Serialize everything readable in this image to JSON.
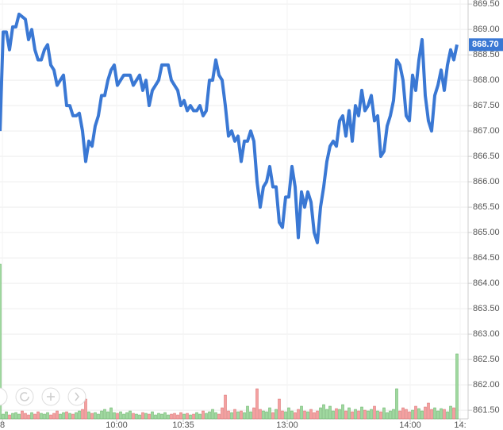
{
  "chart_data": {
    "type": "line",
    "x": [
      0,
      1,
      2,
      3,
      4,
      5,
      6,
      7,
      8,
      9,
      10,
      11,
      12,
      13,
      14,
      15,
      16,
      17,
      18,
      19,
      20,
      21,
      22,
      23,
      24,
      25,
      26,
      27,
      28,
      29,
      30,
      31,
      32,
      33,
      34,
      35,
      36,
      37,
      38,
      39,
      40,
      41,
      42,
      43,
      44,
      45,
      46,
      47,
      48,
      49,
      50,
      51,
      52,
      53,
      54,
      55,
      56,
      57,
      58,
      59,
      60,
      61,
      62,
      63,
      64,
      65,
      66,
      67,
      68,
      69,
      70,
      71,
      72,
      73,
      74,
      75,
      76,
      77,
      78,
      79,
      80,
      81,
      82,
      83,
      84,
      85,
      86,
      87,
      88,
      89,
      90,
      91,
      92,
      93,
      94,
      95,
      96,
      97,
      98,
      99,
      100,
      101,
      102,
      103,
      104,
      105,
      106,
      107,
      108,
      109,
      110,
      111,
      112,
      113,
      114,
      115,
      116,
      117,
      118,
      119,
      120,
      121,
      122,
      123,
      124,
      125,
      126,
      127,
      128,
      129,
      130,
      131,
      132,
      133,
      134,
      135,
      136,
      137,
      138,
      139,
      140,
      141,
      142,
      143,
      144
    ],
    "series": [
      {
        "color": "#3a78d4",
        "values": [
          867.0,
          868.95,
          868.95,
          868.6,
          869.05,
          869.05,
          869.3,
          869.25,
          869.2,
          868.8,
          869.0,
          868.6,
          868.4,
          868.4,
          868.6,
          868.7,
          868.3,
          868.2,
          867.9,
          868.0,
          868.1,
          867.5,
          867.5,
          867.3,
          867.3,
          867.35,
          867.0,
          866.4,
          866.8,
          866.7,
          867.1,
          867.3,
          867.7,
          867.7,
          868.0,
          868.2,
          868.3,
          867.9,
          868.0,
          868.1,
          868.1,
          868.1,
          867.9,
          868.0,
          868.1,
          867.8,
          868.0,
          867.5,
          867.8,
          867.9,
          868.0,
          868.3,
          868.3,
          868.3,
          868.0,
          867.9,
          867.8,
          867.5,
          867.6,
          867.4,
          867.5,
          867.4,
          867.4,
          867.5,
          867.3,
          867.4,
          868.0,
          868.0,
          868.4,
          868.1,
          868.0,
          867.5,
          866.9,
          867.0,
          866.8,
          866.9,
          866.4,
          866.8,
          866.8,
          867.0,
          866.8,
          866.0,
          865.5,
          865.9,
          866.0,
          866.3,
          865.9,
          865.9,
          865.2,
          865.1,
          865.7,
          865.7,
          866.3,
          865.9,
          864.9,
          865.8,
          865.5,
          865.8,
          865.6,
          865.0,
          864.8,
          865.5,
          865.9,
          866.4,
          866.7,
          866.8,
          866.7,
          867.2,
          867.3,
          866.9,
          867.4,
          866.8,
          867.5,
          867.3,
          867.8,
          867.4,
          867.5,
          867.7,
          867.2,
          867.3,
          866.5,
          866.6,
          867.1,
          867.3,
          867.6,
          868.4,
          868.3,
          868.0,
          867.3,
          867.2,
          868.1,
          867.8,
          868.4,
          868.8,
          867.7,
          867.2,
          867.0,
          867.7,
          867.9,
          868.2,
          867.8,
          868.3,
          868.6,
          868.4,
          868.7
        ]
      }
    ],
    "volume": [
      195,
      6,
      9,
      5,
      7,
      8,
      6,
      10,
      7,
      5,
      8,
      6,
      9,
      7,
      6,
      8,
      5,
      7,
      10,
      6,
      8,
      9,
      7,
      6,
      8,
      10,
      12,
      25,
      9,
      7,
      8,
      6,
      10,
      12,
      9,
      14,
      8,
      7,
      9,
      6,
      8,
      10,
      7,
      6,
      5,
      8,
      7,
      6,
      9,
      5,
      7,
      6,
      8,
      5,
      6,
      7,
      5,
      8,
      6,
      7,
      5,
      6,
      8,
      6,
      10,
      7,
      9,
      12,
      8,
      6,
      14,
      30,
      10,
      8,
      12,
      9,
      10,
      8,
      16,
      9,
      14,
      38,
      12,
      10,
      9,
      14,
      8,
      12,
      25,
      10,
      9,
      14,
      10,
      8,
      12,
      16,
      10,
      9,
      12,
      8,
      10,
      14,
      18,
      12,
      16,
      10,
      13,
      12,
      18,
      10,
      14,
      9,
      12,
      10,
      15,
      11,
      10,
      12,
      16,
      10,
      9,
      14,
      8,
      10,
      12,
      38,
      10,
      14,
      12,
      9,
      11,
      16,
      13,
      10,
      15,
      20,
      12,
      14,
      10,
      13,
      12,
      9,
      16,
      14,
      82
    ],
    "vlim": [
      0,
      200
    ],
    "xlim": [
      0,
      147.5
    ],
    "xticks": [
      {
        "value": 0.75,
        "label": "8"
      },
      {
        "value": 36.75,
        "label": "10:00"
      },
      {
        "value": 57.75,
        "label": "10:35"
      },
      {
        "value": 90.5,
        "label": "13:00"
      },
      {
        "value": 129.25,
        "label": "14:00"
      },
      {
        "value": 145,
        "label": "14:"
      }
    ],
    "ylim": [
      861.33,
      869.58
    ],
    "yticks": [
      {
        "value": 861.5,
        "label": "861.50"
      },
      {
        "value": 862,
        "label": "862.00"
      },
      {
        "value": 862.5,
        "label": "862.50"
      },
      {
        "value": 863,
        "label": "863.00"
      },
      {
        "value": 863.5,
        "label": "863.50"
      },
      {
        "value": 864,
        "label": "864.00"
      },
      {
        "value": 864.5,
        "label": "864.50"
      },
      {
        "value": 865,
        "label": "865.00"
      },
      {
        "value": 865.5,
        "label": "865.50"
      },
      {
        "value": 866,
        "label": "866.00"
      },
      {
        "value": 866.5,
        "label": "866.50"
      },
      {
        "value": 867,
        "label": "867.00"
      },
      {
        "value": 867.5,
        "label": "867.50"
      },
      {
        "value": 868,
        "label": "868.00"
      },
      {
        "value": 868.5,
        "label": "868.50"
      },
      {
        "value": 869,
        "label": "869.00"
      },
      {
        "value": 869.5,
        "label": "869.50"
      }
    ],
    "last_value": 868.7,
    "last_value_label": "868.70",
    "grid": true
  }
}
